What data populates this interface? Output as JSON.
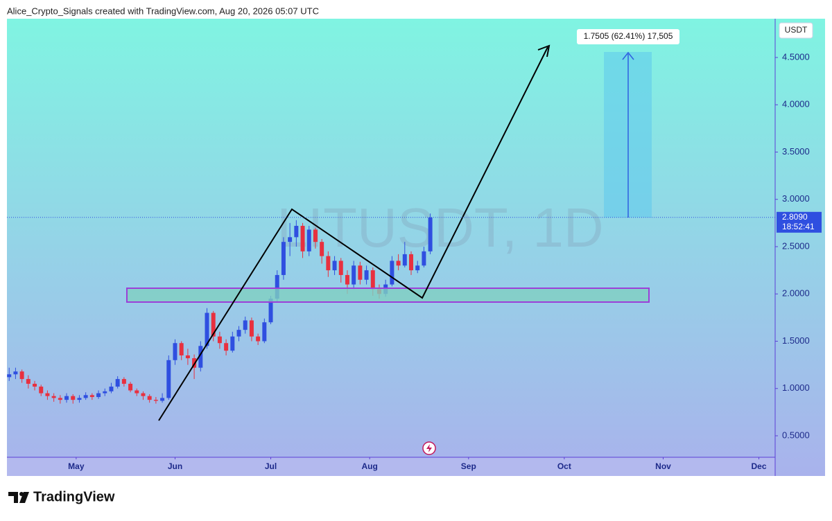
{
  "header": "Alice_Crypto_Signals created with TradingView.com, Aug 20, 2026 05:07 UTC",
  "footer_brand": "TradingView",
  "chart_data": {
    "type": "candlestick",
    "watermark": "LITUSDT, 1D",
    "y_axis_label": "USDT",
    "up_color": "#2f4fe0",
    "down_color": "#e8303f",
    "xlim": [
      -21.7,
      219.1
    ],
    "ylim": [
      0.273,
      4.91
    ],
    "xticks": [
      {
        "value": 0,
        "label": "May"
      },
      {
        "value": 31,
        "label": "Jun"
      },
      {
        "value": 61,
        "label": "Jul"
      },
      {
        "value": 92,
        "label": "Aug"
      },
      {
        "value": 123,
        "label": "Sep"
      },
      {
        "value": 153,
        "label": "Oct"
      },
      {
        "value": 184,
        "label": "Nov"
      },
      {
        "value": 214,
        "label": "Dec"
      }
    ],
    "yticks": [
      {
        "value": 0.5,
        "label": "0.5000"
      },
      {
        "value": 1,
        "label": "1.0000"
      },
      {
        "value": 1.5,
        "label": "1.5000"
      },
      {
        "value": 2,
        "label": "2.0000"
      },
      {
        "value": 2.5,
        "label": "2.5000"
      },
      {
        "value": 3,
        "label": "3.0000"
      },
      {
        "value": 3.5,
        "label": "3.5000"
      },
      {
        "value": 4,
        "label": "4.0000"
      },
      {
        "value": 4.5,
        "label": "4.5000"
      }
    ],
    "last_price": {
      "value": 2.809,
      "label": "2.8090"
    },
    "countdown": "18:52:41",
    "measure_label": "1.7505 (62.41%) 17,505",
    "candles": [
      [
        -21,
        1.12,
        1.22,
        1.08,
        1.15
      ],
      [
        -19,
        1.15,
        1.22,
        1.1,
        1.18
      ],
      [
        -17,
        1.18,
        1.2,
        1.06,
        1.1
      ],
      [
        -15,
        1.1,
        1.14,
        1.0,
        1.05
      ],
      [
        -13,
        1.05,
        1.08,
        0.98,
        1.02
      ],
      [
        -11,
        1.02,
        1.04,
        0.92,
        0.95
      ],
      [
        -9,
        0.95,
        0.98,
        0.88,
        0.92
      ],
      [
        -7,
        0.92,
        0.95,
        0.86,
        0.9
      ],
      [
        -5,
        0.9,
        0.93,
        0.84,
        0.88
      ],
      [
        -3,
        0.88,
        0.95,
        0.85,
        0.92
      ],
      [
        -1,
        0.92,
        0.94,
        0.84,
        0.88
      ],
      [
        1,
        0.88,
        0.93,
        0.85,
        0.9
      ],
      [
        3,
        0.9,
        0.96,
        0.88,
        0.93
      ],
      [
        5,
        0.93,
        0.95,
        0.88,
        0.91
      ],
      [
        7,
        0.91,
        0.98,
        0.89,
        0.95
      ],
      [
        9,
        0.95,
        1.0,
        0.92,
        0.97
      ],
      [
        11,
        0.97,
        1.06,
        0.95,
        1.02
      ],
      [
        13,
        1.02,
        1.13,
        1.0,
        1.1
      ],
      [
        15,
        1.1,
        1.12,
        1.02,
        1.05
      ],
      [
        17,
        1.05,
        1.07,
        0.96,
        0.98
      ],
      [
        19,
        0.98,
        1.0,
        0.92,
        0.95
      ],
      [
        21,
        0.95,
        0.97,
        0.88,
        0.92
      ],
      [
        23,
        0.92,
        0.94,
        0.85,
        0.88
      ],
      [
        25,
        0.88,
        0.91,
        0.84,
        0.87
      ],
      [
        27,
        0.87,
        0.95,
        0.85,
        0.9
      ],
      [
        29,
        0.9,
        1.35,
        0.88,
        1.3
      ],
      [
        31,
        1.3,
        1.52,
        1.25,
        1.48
      ],
      [
        33,
        1.48,
        1.5,
        1.3,
        1.35
      ],
      [
        35,
        1.35,
        1.42,
        1.25,
        1.32
      ],
      [
        37,
        1.32,
        1.36,
        1.1,
        1.22
      ],
      [
        39,
        1.22,
        1.5,
        1.18,
        1.45
      ],
      [
        41,
        1.45,
        1.85,
        1.42,
        1.8
      ],
      [
        43,
        1.8,
        1.82,
        1.5,
        1.55
      ],
      [
        45,
        1.55,
        1.6,
        1.42,
        1.48
      ],
      [
        47,
        1.48,
        1.52,
        1.35,
        1.4
      ],
      [
        49,
        1.4,
        1.6,
        1.38,
        1.55
      ],
      [
        51,
        1.55,
        1.66,
        1.5,
        1.62
      ],
      [
        53,
        1.62,
        1.76,
        1.58,
        1.72
      ],
      [
        55,
        1.72,
        1.75,
        1.5,
        1.55
      ],
      [
        57,
        1.55,
        1.58,
        1.46,
        1.5
      ],
      [
        59,
        1.5,
        1.74,
        1.48,
        1.7
      ],
      [
        61,
        1.7,
        1.98,
        1.68,
        1.95
      ],
      [
        63,
        1.95,
        2.25,
        1.92,
        2.2
      ],
      [
        65,
        2.2,
        2.6,
        2.15,
        2.55
      ],
      [
        67,
        2.55,
        2.75,
        2.4,
        2.6
      ],
      [
        69,
        2.6,
        2.78,
        2.5,
        2.72
      ],
      [
        71,
        2.72,
        2.75,
        2.38,
        2.45
      ],
      [
        73,
        2.45,
        2.72,
        2.4,
        2.68
      ],
      [
        75,
        2.68,
        2.7,
        2.48,
        2.55
      ],
      [
        77,
        2.55,
        2.58,
        2.32,
        2.4
      ],
      [
        79,
        2.4,
        2.45,
        2.18,
        2.25
      ],
      [
        81,
        2.25,
        2.4,
        2.2,
        2.35
      ],
      [
        83,
        2.35,
        2.38,
        2.12,
        2.2
      ],
      [
        85,
        2.2,
        2.25,
        2.0,
        2.1
      ],
      [
        87,
        2.1,
        2.35,
        2.05,
        2.3
      ],
      [
        89,
        2.3,
        2.34,
        2.1,
        2.15
      ],
      [
        91,
        2.15,
        2.3,
        2.1,
        2.25
      ],
      [
        93,
        2.25,
        2.28,
        1.98,
        2.05
      ],
      [
        95,
        2.05,
        2.1,
        1.95,
        2.0
      ],
      [
        97,
        2.0,
        2.15,
        1.97,
        2.1
      ],
      [
        99,
        2.1,
        2.4,
        2.08,
        2.35
      ],
      [
        101,
        2.35,
        2.42,
        2.25,
        2.3
      ],
      [
        103,
        2.3,
        2.55,
        2.28,
        2.42
      ],
      [
        105,
        2.42,
        2.45,
        2.2,
        2.25
      ],
      [
        107,
        2.25,
        2.35,
        2.22,
        2.3
      ],
      [
        109,
        2.3,
        2.5,
        2.28,
        2.45
      ],
      [
        111,
        2.45,
        2.85,
        2.42,
        2.809
      ]
    ]
  }
}
